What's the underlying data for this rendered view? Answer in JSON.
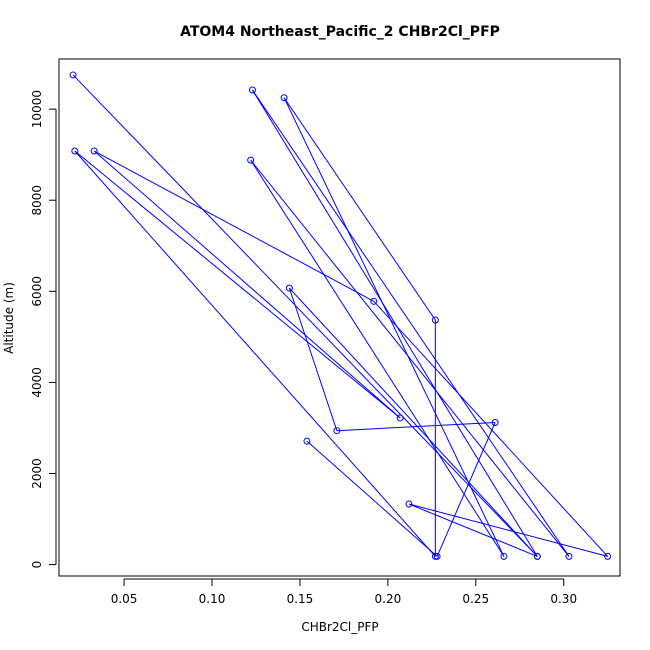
{
  "chart_data": {
    "type": "line",
    "title": "ATOM4 Northeast_Pacific_2 CHBr2Cl_PFP",
    "xlabel": "CHBr2Cl_PFP",
    "ylabel": "Altitude (m)",
    "xlim": [
      0.013,
      0.332
    ],
    "ylim": [
      -250,
      11100
    ],
    "xticks": [
      0.05,
      0.1,
      0.15,
      0.2,
      0.25,
      0.3
    ],
    "xtick_labels": [
      "0.05",
      "0.10",
      "0.15",
      "0.20",
      "0.25",
      "0.30"
    ],
    "yticks": [
      0,
      2000,
      4000,
      6000,
      8000,
      10000
    ],
    "ytick_labels": [
      "0",
      "2000",
      "4000",
      "6000",
      "8000",
      "10000"
    ],
    "grid": false,
    "legend": "none",
    "color": "#0000ff",
    "x": [
      0.021,
      0.285,
      0.123,
      0.303,
      0.122,
      0.266,
      0.141,
      0.227,
      0.227,
      0.022,
      0.207,
      0.033,
      0.192,
      0.325,
      0.212,
      0.285,
      0.144,
      0.171,
      0.261,
      0.228,
      0.154
    ],
    "y": [
      10750,
      180,
      10420,
      180,
      8880,
      180,
      10250,
      5370,
      180,
      9080,
      3220,
      9080,
      5780,
      180,
      1330,
      180,
      6070,
      2940,
      3120,
      180,
      2710
    ]
  }
}
